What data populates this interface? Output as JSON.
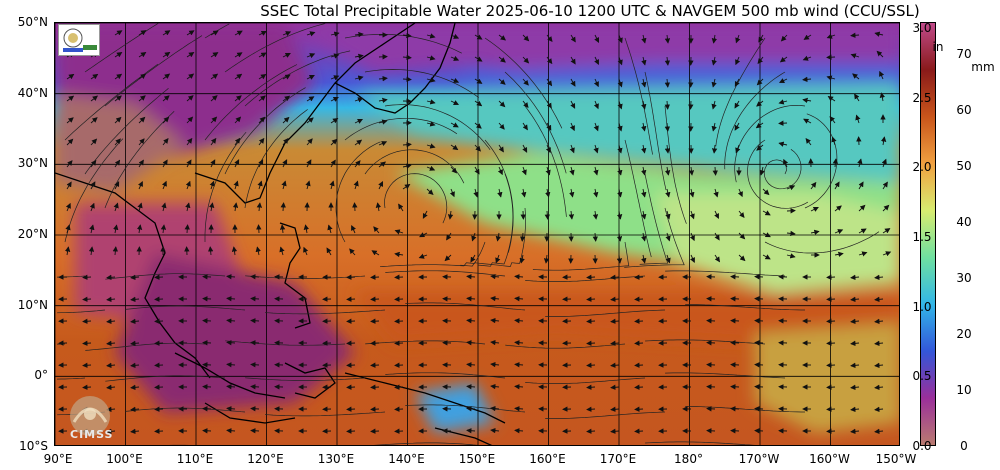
{
  "title": "SSEC Total Precipitable Water  2025-06-10 1200 UTC & NAVGEM 500 mb wind (CCU/SSL)",
  "lat_labels": [
    "50°N",
    "40°N",
    "30°N",
    "20°N",
    "10°N",
    "0°",
    "10°S"
  ],
  "lon_labels": [
    "90°E",
    "100°E",
    "110°E",
    "120°E",
    "130°E",
    "140°E",
    "150°E",
    "160°E",
    "170°E",
    "180°",
    "170°W",
    "160°W",
    "150°W"
  ],
  "colorbar": {
    "units_left": "in",
    "units_right": "mm",
    "inch_ticks": [
      "3.0",
      "2.5",
      "2.0",
      "1.5",
      "1.0",
      "0.5",
      "0.0"
    ],
    "mm_ticks": [
      "70",
      "60",
      "50",
      "40",
      "30",
      "20",
      "10",
      "0"
    ],
    "colors": [
      "#b97b70",
      "#9a2f9a",
      "#3356d9",
      "#32b6e8",
      "#6fe0a0",
      "#d8ec70",
      "#f0a040",
      "#c9551b",
      "#8a1a1a",
      "#c04a8a"
    ]
  },
  "logos": {
    "cimss_text": "CIMSS"
  },
  "map_extent": {
    "lon_min": 90,
    "lon_max": 210,
    "lat_min": -10,
    "lat_max": 50
  }
}
